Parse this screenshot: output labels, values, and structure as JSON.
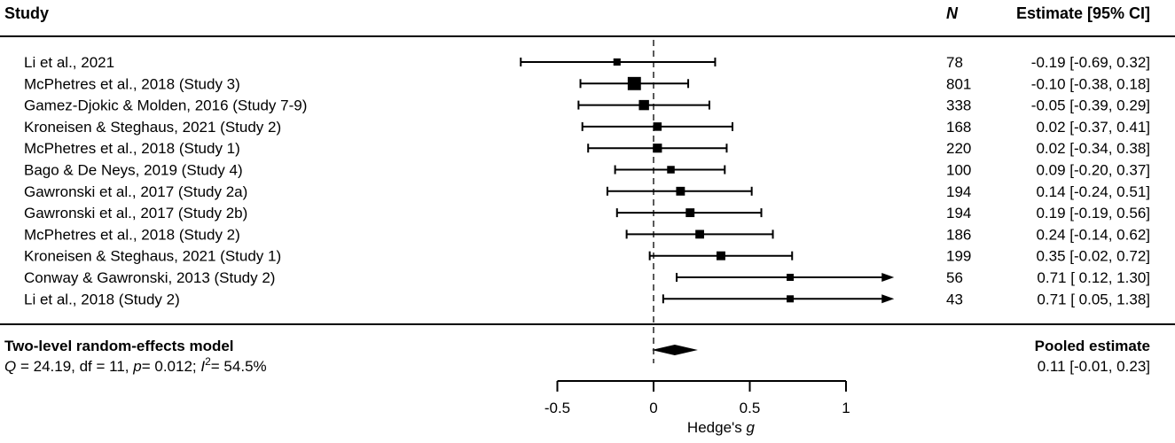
{
  "chart_data": {
    "type": "forest",
    "headers": {
      "study": "Study",
      "n": "N",
      "estimate": "Estimate [95% CI]"
    },
    "rows": [
      {
        "study": "Li et al., 2021",
        "n": "78",
        "estimate": -0.19,
        "lower": -0.69,
        "upper": 0.32,
        "estimate_text": "-0.19 [-0.69, 0.32]"
      },
      {
        "study": "McPhetres et al., 2018 (Study 3)",
        "n": "801",
        "estimate": -0.1,
        "lower": -0.38,
        "upper": 0.18,
        "estimate_text": "-0.10 [-0.38, 0.18]"
      },
      {
        "study": "Gamez-Djokic & Molden, 2016 (Study 7-9)",
        "n": "338",
        "estimate": -0.05,
        "lower": -0.39,
        "upper": 0.29,
        "estimate_text": "-0.05 [-0.39, 0.29]"
      },
      {
        "study": "Kroneisen & Steghaus, 2021 (Study 2)",
        "n": "168",
        "estimate": 0.02,
        "lower": -0.37,
        "upper": 0.41,
        "estimate_text": "0.02 [-0.37, 0.41]"
      },
      {
        "study": "McPhetres et al., 2018 (Study 1)",
        "n": "220",
        "estimate": 0.02,
        "lower": -0.34,
        "upper": 0.38,
        "estimate_text": "0.02 [-0.34, 0.38]"
      },
      {
        "study": "Bago & De Neys, 2019 (Study 4)",
        "n": "100",
        "estimate": 0.09,
        "lower": -0.2,
        "upper": 0.37,
        "estimate_text": "0.09 [-0.20, 0.37]"
      },
      {
        "study": "Gawronski et al., 2017 (Study 2a)",
        "n": "194",
        "estimate": 0.14,
        "lower": -0.24,
        "upper": 0.51,
        "estimate_text": "0.14 [-0.24, 0.51]"
      },
      {
        "study": "Gawronski et al., 2017 (Study 2b)",
        "n": "194",
        "estimate": 0.19,
        "lower": -0.19,
        "upper": 0.56,
        "estimate_text": "0.19 [-0.19, 0.56]"
      },
      {
        "study": "McPhetres et al., 2018 (Study 2)",
        "n": "186",
        "estimate": 0.24,
        "lower": -0.14,
        "upper": 0.62,
        "estimate_text": "0.24 [-0.14, 0.62]"
      },
      {
        "study": "Kroneisen & Steghaus, 2021 (Study 1)",
        "n": "199",
        "estimate": 0.35,
        "lower": -0.02,
        "upper": 0.72,
        "estimate_text": "0.35 [-0.02, 0.72]"
      },
      {
        "study": "Conway & Gawronski, 2013 (Study 2)",
        "n": "56",
        "estimate": 0.71,
        "lower": 0.12,
        "upper": 1.3,
        "estimate_text": "0.71 [ 0.12, 1.30]"
      },
      {
        "study": "Li et al., 2018 (Study 2)",
        "n": "43",
        "estimate": 0.71,
        "lower": 0.05,
        "upper": 1.38,
        "estimate_text": "0.71 [ 0.05, 1.38]"
      }
    ],
    "pooled": {
      "model_label": "Two-level random-effects model",
      "stats_parts": [
        "Q",
        " = 24.19, df = 11, ",
        "p",
        "= 0.012; ",
        "I",
        "2",
        "= 54.5%"
      ],
      "label": "Pooled estimate",
      "estimate": 0.11,
      "lower": -0.01,
      "upper": 0.23,
      "estimate_text": "0.11 [-0.01, 0.23]"
    },
    "x_axis": {
      "label_main": "Hedge's ",
      "label_italic": "g",
      "ticks": [
        -0.5,
        0,
        0.5,
        1
      ],
      "tick_labels": [
        "-0.5",
        "0",
        "0.5",
        "1"
      ],
      "clip_max": 1.25,
      "reference_line": 0
    },
    "colors": {
      "ink": "#000000"
    }
  }
}
